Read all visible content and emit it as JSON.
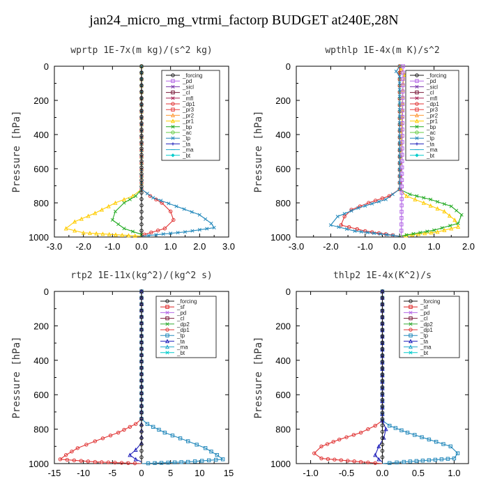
{
  "title": "jan24_micro_mg_vtrmi_factorp  BUDGET at240E,28N",
  "colors": {
    "_forcing": "#1a1a1a",
    "_pd": "#b366e6",
    "_sicl": "#7733aa",
    "_cl": "#7a1a3a",
    "_mfl": "#aa2255",
    "_dp1": "#e03333",
    "_pr3": "#e84040",
    "_pr2": "#ff9933",
    "_pr1": "#ffcc00",
    "_bp": "#22aa22",
    "_ac": "#66cc44",
    "_tp": "#2288bb",
    "_ta": "#2222bb",
    "_ma": "#22aacc",
    "_bt": "#00cccc",
    "_sf": "#dd2222",
    "_dp2": "#33aa33"
  },
  "chart_data": [
    {
      "type": "line",
      "title": "wprtp   1E-7x(m kg)/(s^2 kg)",
      "ylabel": "Pressure [hPa]",
      "xlim": [
        -3.0,
        3.0
      ],
      "ylim": [
        1000,
        0
      ],
      "xticks": [
        "-3.0",
        "-2.0",
        "-1.0",
        "0.0",
        "1.0",
        "2.0",
        "3.0"
      ],
      "xtick_values": [
        -3,
        -2,
        -1,
        0,
        1,
        2,
        3
      ],
      "yticks": [
        "0",
        "200",
        "400",
        "600",
        "800",
        "1000"
      ],
      "ytick_values": [
        0,
        200,
        400,
        600,
        800,
        1000
      ],
      "legend": [
        "_forcing",
        "_pd",
        "_sicl",
        "_cl",
        "_mfl",
        "_dp1",
        "_pr3",
        "_pr2",
        "_pr1",
        "_bp",
        "_ac",
        "_tp",
        "_ta",
        "_ma",
        "_bt"
      ],
      "series": [
        {
          "name": "_pr1",
          "points": [
            [
              0,
              0
            ],
            [
              0,
              720
            ],
            [
              -0.3,
              760
            ],
            [
              -0.9,
              800
            ],
            [
              -1.6,
              860
            ],
            [
              -2.3,
              910
            ],
            [
              -2.6,
              950
            ],
            [
              -2.0,
              975
            ],
            [
              0,
              995
            ]
          ]
        },
        {
          "name": "_bp",
          "points": [
            [
              0,
              0
            ],
            [
              0,
              720
            ],
            [
              -0.2,
              760
            ],
            [
              -0.6,
              800
            ],
            [
              -0.9,
              850
            ],
            [
              -1.0,
              900
            ],
            [
              -0.6,
              950
            ],
            [
              0,
              985
            ],
            [
              0,
              1000
            ]
          ]
        },
        {
          "name": "_dp1",
          "points": [
            [
              0,
              0
            ],
            [
              0,
              720
            ],
            [
              0.3,
              760
            ],
            [
              0.7,
              800
            ],
            [
              1.0,
              850
            ],
            [
              1.1,
              900
            ],
            [
              0.8,
              950
            ],
            [
              0.1,
              985
            ],
            [
              0,
              1000
            ]
          ]
        },
        {
          "name": "_tp",
          "points": [
            [
              0,
              0
            ],
            [
              0,
              720
            ],
            [
              0.4,
              770
            ],
            [
              1.2,
              820
            ],
            [
              2.0,
              870
            ],
            [
              2.4,
              920
            ],
            [
              2.5,
              945
            ],
            [
              1.5,
              970
            ],
            [
              0,
              995
            ]
          ]
        },
        {
          "name": "_forcing",
          "points": [
            [
              0,
              0
            ],
            [
              0,
              1000
            ]
          ]
        }
      ]
    },
    {
      "type": "line",
      "title": "wpthlp   1E-4x(m K)/s^2",
      "ylabel": "Pressure [hPa]",
      "xlim": [
        -3.0,
        2.0
      ],
      "ylim": [
        1000,
        0
      ],
      "xticks": [
        "-3.0",
        "-2.0",
        "-1.0",
        "0.0",
        "1.0",
        "2.0"
      ],
      "xtick_values": [
        -3,
        -2,
        -1,
        0,
        1,
        2
      ],
      "yticks": [
        "0",
        "200",
        "400",
        "600",
        "800",
        "1000"
      ],
      "ytick_values": [
        0,
        200,
        400,
        600,
        800,
        1000
      ],
      "legend": [
        "_forcing",
        "_pd",
        "_sicl",
        "_cl",
        "_mfl",
        "_dp1",
        "_pr3",
        "_pr2",
        "_pr1",
        "_bp",
        "_ac",
        "_tp",
        "_ta",
        "_ma",
        "_bt"
      ],
      "series": [
        {
          "name": "_pr1",
          "points": [
            [
              0,
              0
            ],
            [
              0.05,
              20
            ],
            [
              0.15,
              50
            ],
            [
              0.1,
              100
            ],
            [
              0,
              720
            ],
            [
              0.2,
              760
            ],
            [
              0.7,
              800
            ],
            [
              1.3,
              850
            ],
            [
              1.6,
              900
            ],
            [
              1.7,
              940
            ],
            [
              1.1,
              970
            ],
            [
              0,
              995
            ]
          ]
        },
        {
          "name": "_bp",
          "points": [
            [
              0,
              0
            ],
            [
              0,
              720
            ],
            [
              0.3,
              750
            ],
            [
              0.9,
              780
            ],
            [
              1.5,
              820
            ],
            [
              1.8,
              870
            ],
            [
              1.7,
              920
            ],
            [
              1.0,
              960
            ],
            [
              0,
              995
            ]
          ]
        },
        {
          "name": "_dp1",
          "points": [
            [
              0,
              0
            ],
            [
              0,
              720
            ],
            [
              -0.3,
              760
            ],
            [
              -0.9,
              800
            ],
            [
              -1.4,
              840
            ],
            [
              -1.6,
              880
            ],
            [
              -1.7,
              930
            ],
            [
              -1.0,
              965
            ],
            [
              0,
              995
            ]
          ]
        },
        {
          "name": "_tp",
          "points": [
            [
              0,
              0
            ],
            [
              -0.1,
              30
            ],
            [
              0,
              60
            ],
            [
              0,
              720
            ],
            [
              -0.4,
              780
            ],
            [
              -1.2,
              830
            ],
            [
              -1.8,
              880
            ],
            [
              -2.0,
              930
            ],
            [
              -1.3,
              965
            ],
            [
              0,
              995
            ]
          ]
        },
        {
          "name": "_pd",
          "points": [
            [
              0.1,
              0
            ],
            [
              0.05,
              1000
            ]
          ]
        }
      ]
    },
    {
      "type": "line",
      "title": "rtp2   1E-11x(kg^2)/(kg^2 s)",
      "ylabel": "Pressure [hPa]",
      "xlim": [
        -15,
        15
      ],
      "ylim": [
        1000,
        0
      ],
      "xticks": [
        "-15",
        "-10",
        "-5",
        "0",
        "5",
        "10",
        "15"
      ],
      "xtick_values": [
        -15,
        -10,
        -5,
        0,
        5,
        10,
        15
      ],
      "yticks": [
        "0",
        "200",
        "400",
        "600",
        "800",
        "1000"
      ],
      "ytick_values": [
        0,
        200,
        400,
        600,
        800,
        1000
      ],
      "legend": [
        "_forcing",
        "_sf",
        "_pd",
        "_cl",
        "_dp2",
        "_dp1",
        "_tp",
        "_ta",
        "_ma",
        "_bt"
      ],
      "series": [
        {
          "name": "_dp1",
          "points": [
            [
              0,
              0
            ],
            [
              0,
              740
            ],
            [
              -1,
              770
            ],
            [
              -4,
              820
            ],
            [
              -8,
              870
            ],
            [
              -11,
              910
            ],
            [
              -13,
              950
            ],
            [
              -14,
              975
            ],
            [
              -8,
              990
            ],
            [
              0,
              1000
            ]
          ]
        },
        {
          "name": "_tp",
          "points": [
            [
              0,
              0
            ],
            [
              0,
              740
            ],
            [
              1,
              770
            ],
            [
              4,
              820
            ],
            [
              8,
              870
            ],
            [
              11,
              910
            ],
            [
              13,
              950
            ],
            [
              14,
              975
            ],
            [
              8,
              990
            ],
            [
              0,
              1000
            ]
          ]
        },
        {
          "name": "_ta",
          "points": [
            [
              0,
              0
            ],
            [
              0,
              880
            ],
            [
              -1,
              920
            ],
            [
              -2,
              950
            ],
            [
              -1,
              975
            ],
            [
              0,
              990
            ]
          ]
        },
        {
          "name": "_forcing",
          "points": [
            [
              0,
              0
            ],
            [
              0,
              1000
            ]
          ]
        }
      ]
    },
    {
      "type": "line",
      "title": "thlp2   1E-4x(K^2)/s",
      "ylabel": "Pressure [hPa]",
      "xlim": [
        -1.2,
        1.2
      ],
      "ylim": [
        1000,
        0
      ],
      "xticks": [
        "-1.0",
        "-0.5",
        "0.0",
        "0.5",
        "1.0"
      ],
      "xtick_values": [
        -1.0,
        -0.5,
        0.0,
        0.5,
        1.0
      ],
      "yticks": [
        "0",
        "200",
        "400",
        "600",
        "800",
        "1000"
      ],
      "ytick_values": [
        0,
        200,
        400,
        600,
        800,
        1000
      ],
      "legend": [
        "_forcing",
        "_sf",
        "_pd",
        "_cl",
        "_dp2",
        "_dp1",
        "_tp",
        "_ta",
        "_ma",
        "_bt"
      ],
      "series": [
        {
          "name": "_dp1",
          "points": [
            [
              0,
              0
            ],
            [
              0,
              750
            ],
            [
              -0.1,
              780
            ],
            [
              -0.3,
              820
            ],
            [
              -0.6,
              860
            ],
            [
              -0.85,
              900
            ],
            [
              -0.95,
              940
            ],
            [
              -0.85,
              970
            ],
            [
              -0.3,
              990
            ],
            [
              0,
              1000
            ]
          ]
        },
        {
          "name": "_tp",
          "points": [
            [
              0,
              0
            ],
            [
              0,
              750
            ],
            [
              0.1,
              780
            ],
            [
              0.35,
              820
            ],
            [
              0.65,
              860
            ],
            [
              0.95,
              900
            ],
            [
              1.05,
              940
            ],
            [
              1.0,
              970
            ],
            [
              0.3,
              990
            ],
            [
              0,
              1000
            ]
          ]
        },
        {
          "name": "_ta",
          "points": [
            [
              0,
              0
            ],
            [
              0,
              750
            ],
            [
              0.05,
              800
            ],
            [
              0.02,
              850
            ],
            [
              -0.05,
              900
            ],
            [
              -0.1,
              950
            ],
            [
              -0.05,
              975
            ],
            [
              0,
              990
            ]
          ]
        },
        {
          "name": "_forcing",
          "points": [
            [
              0,
              0
            ],
            [
              0,
              1000
            ]
          ]
        }
      ]
    }
  ]
}
